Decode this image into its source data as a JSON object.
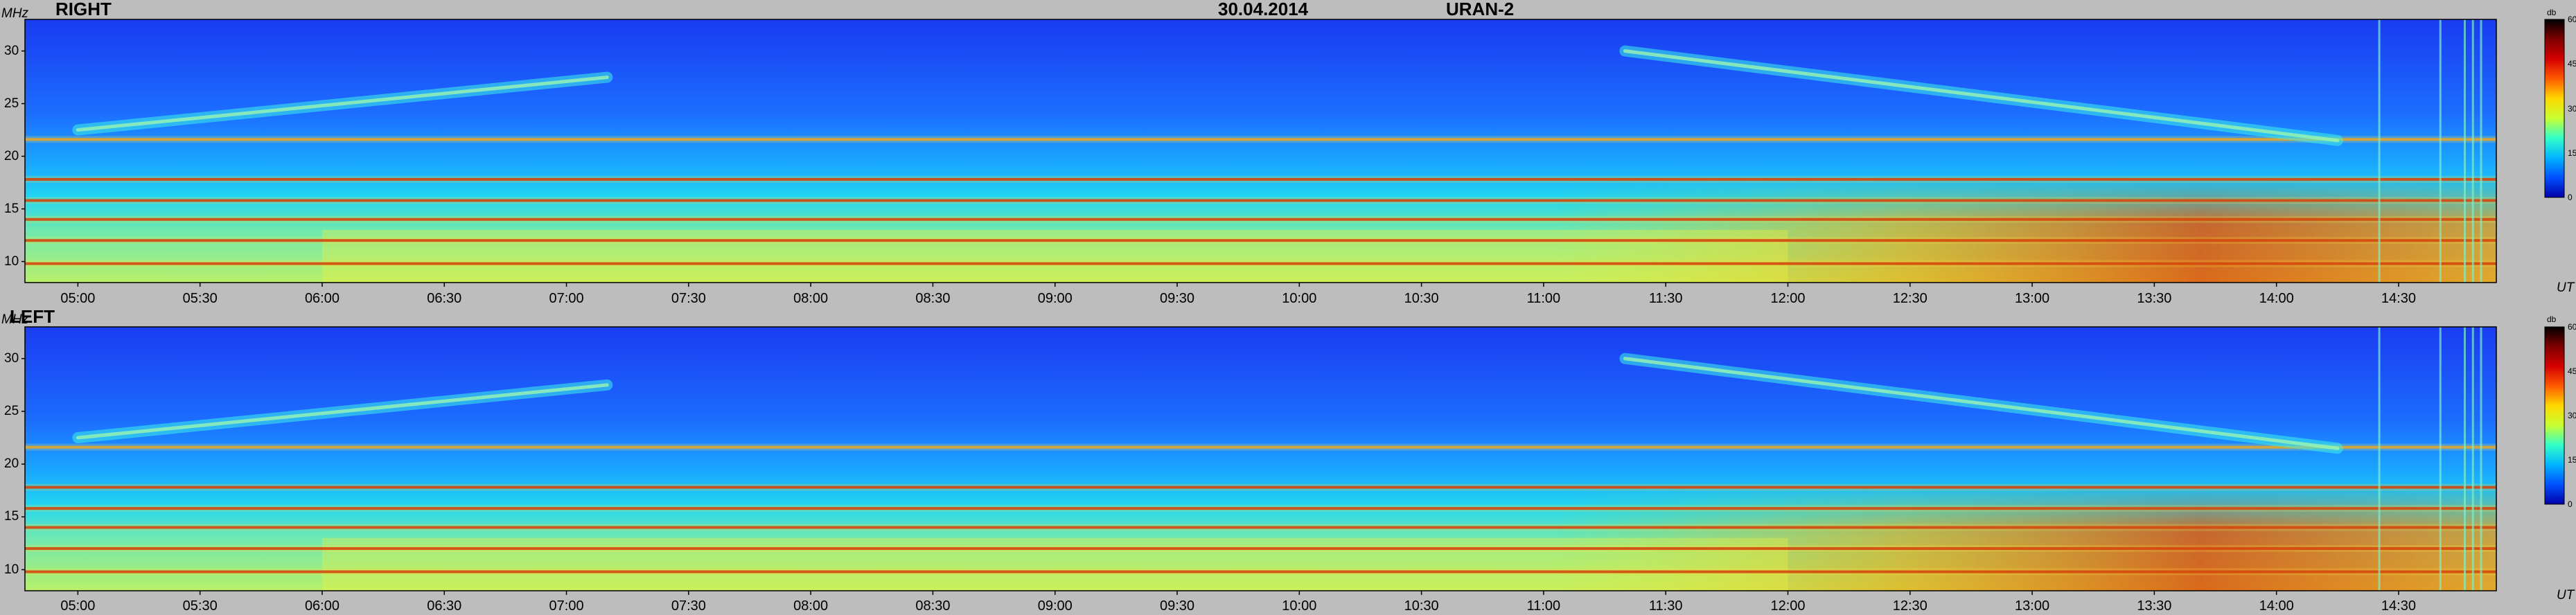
{
  "header": {
    "date": "30.04.2014",
    "instrument": "URAN-2"
  },
  "colorbar": {
    "unit": "db",
    "ticks": [
      "60",
      "45",
      "30",
      "15",
      "0"
    ],
    "colors": [
      "#000000",
      "#7f0000",
      "#d40000",
      "#ff5a00",
      "#ffd800",
      "#c8ff32",
      "#32ffc8",
      "#00b4ff",
      "#0050ff",
      "#0000aa"
    ]
  },
  "chart_data": [
    {
      "type": "heatmap",
      "title": "RIGHT",
      "ylabel": "MHz",
      "xlabel": "UT",
      "x_ticks": [
        "05:00",
        "05:30",
        "06:00",
        "06:30",
        "07:00",
        "07:30",
        "08:00",
        "08:30",
        "09:00",
        "09:30",
        "10:00",
        "10:30",
        "11:00",
        "11:30",
        "12:00",
        "12:30",
        "13:00",
        "13:30",
        "14:00",
        "14:30"
      ],
      "y_ticks": [
        "30",
        "25",
        "20",
        "15",
        "10"
      ],
      "x_range": [
        "04:47",
        "14:54"
      ],
      "y_range": [
        8,
        33
      ],
      "z_range": [
        0,
        60
      ],
      "interference_lines_mhz": [
        9.8,
        12.0,
        14.0,
        15.8,
        17.8,
        21.6
      ],
      "drifting_features": [
        {
          "start_time": "05:00",
          "start_mhz": 22.5,
          "end_time": "07:10",
          "end_mhz": 27.5
        },
        {
          "start_time": "11:20",
          "start_mhz": 30.0,
          "end_time": "14:15",
          "end_mhz": 21.5
        }
      ]
    },
    {
      "type": "heatmap",
      "title": "LEFT",
      "ylabel": "MHz",
      "xlabel": "UT",
      "x_ticks": [
        "05:00",
        "05:30",
        "06:00",
        "06:30",
        "07:00",
        "07:30",
        "08:00",
        "08:30",
        "09:00",
        "09:30",
        "10:00",
        "10:30",
        "11:00",
        "11:30",
        "12:00",
        "12:30",
        "13:00",
        "13:30",
        "14:00",
        "14:30"
      ],
      "y_ticks": [
        "30",
        "25",
        "20",
        "15",
        "10"
      ],
      "x_range": [
        "04:47",
        "14:54"
      ],
      "y_range": [
        8,
        33
      ],
      "z_range": [
        0,
        60
      ],
      "interference_lines_mhz": [
        9.8,
        12.0,
        14.0,
        15.8,
        17.8,
        21.6
      ],
      "drifting_features": [
        {
          "start_time": "05:00",
          "start_mhz": 22.5,
          "end_time": "07:10",
          "end_mhz": 27.5
        },
        {
          "start_time": "11:20",
          "start_mhz": 30.0,
          "end_time": "14:15",
          "end_mhz": 21.5
        }
      ]
    }
  ]
}
